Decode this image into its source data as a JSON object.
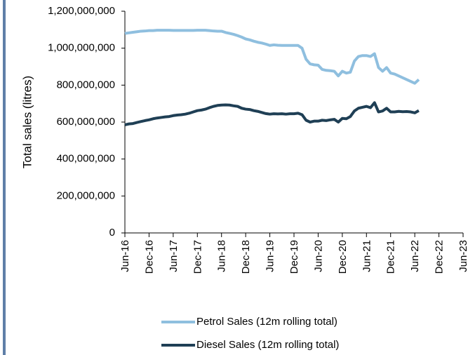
{
  "chart_data": {
    "type": "line",
    "ylabel": "Total sales (litres)",
    "categories": [
      "Jun-16",
      null,
      null,
      null,
      null,
      null,
      "Dec-16",
      null,
      null,
      null,
      null,
      null,
      "Jun-17",
      null,
      null,
      null,
      null,
      null,
      "Dec-17",
      null,
      null,
      null,
      null,
      null,
      "Jun-18",
      null,
      null,
      null,
      null,
      null,
      "Dec-18",
      null,
      null,
      null,
      null,
      null,
      "Jun-19",
      null,
      null,
      null,
      null,
      null,
      "Dec-19",
      null,
      null,
      null,
      null,
      null,
      "Jun-20",
      null,
      null,
      null,
      null,
      null,
      "Dec-20",
      null,
      null,
      null,
      null,
      null,
      "Jun-21",
      null,
      null,
      null,
      null,
      null,
      "Dec-21",
      null,
      null,
      null,
      null,
      null,
      "Jun-22",
      null,
      null,
      null,
      null,
      null,
      "Dec-22",
      null,
      null,
      null,
      null,
      null,
      "Jun-23"
    ],
    "series": [
      {
        "name": "Petrol Sales (12m rolling total)",
        "color": "#8fbfdf",
        "values": [
          1080000000,
          1083000000,
          1086000000,
          1089000000,
          1092000000,
          1093000000,
          1095000000,
          1095000000,
          1097000000,
          1097000000,
          1097000000,
          1097000000,
          1096000000,
          1096000000,
          1096000000,
          1096000000,
          1096000000,
          1096000000,
          1097000000,
          1097000000,
          1097000000,
          1095000000,
          1093000000,
          1092000000,
          1092000000,
          1085000000,
          1080000000,
          1075000000,
          1068000000,
          1060000000,
          1050000000,
          1045000000,
          1038000000,
          1032000000,
          1028000000,
          1022000000,
          1015000000,
          1018000000,
          1016000000,
          1015000000,
          1015000000,
          1015000000,
          1015000000,
          1015000000,
          1000000000,
          940000000,
          915000000,
          910000000,
          908000000,
          885000000,
          880000000,
          878000000,
          875000000,
          850000000,
          875000000,
          865000000,
          870000000,
          930000000,
          955000000,
          960000000,
          960000000,
          955000000,
          970000000,
          895000000,
          875000000,
          895000000,
          865000000,
          860000000,
          850000000,
          840000000,
          830000000,
          820000000,
          810000000,
          830000000,
          null,
          null,
          null,
          null,
          null,
          null,
          null,
          null,
          null,
          null,
          null
        ]
      },
      {
        "name": "Diesel Sales (12m rolling total)",
        "color": "#1f3f55",
        "values": [
          585000000,
          590000000,
          592000000,
          598000000,
          603000000,
          608000000,
          612000000,
          618000000,
          622000000,
          625000000,
          628000000,
          630000000,
          635000000,
          638000000,
          640000000,
          643000000,
          648000000,
          655000000,
          662000000,
          665000000,
          670000000,
          678000000,
          685000000,
          690000000,
          692000000,
          693000000,
          692000000,
          688000000,
          685000000,
          675000000,
          670000000,
          668000000,
          662000000,
          658000000,
          652000000,
          646000000,
          643000000,
          645000000,
          644000000,
          645000000,
          643000000,
          645000000,
          645000000,
          648000000,
          640000000,
          610000000,
          600000000,
          605000000,
          605000000,
          610000000,
          608000000,
          612000000,
          615000000,
          600000000,
          620000000,
          618000000,
          630000000,
          660000000,
          675000000,
          680000000,
          685000000,
          678000000,
          705000000,
          655000000,
          660000000,
          675000000,
          655000000,
          655000000,
          658000000,
          656000000,
          657000000,
          655000000,
          650000000,
          662000000,
          null,
          null,
          null,
          null,
          null,
          null,
          null,
          null,
          null,
          null,
          null
        ]
      }
    ],
    "ylim": [
      0,
      1200000000
    ],
    "yticks": [
      0,
      {
        "value": 200000000,
        "label": "200,000,000"
      },
      {
        "value": 400000000,
        "label": "400,000,000"
      },
      {
        "value": 600000000,
        "label": "600,000,000"
      },
      {
        "value": 800000000,
        "label": "800,000,000"
      },
      {
        "value": 1000000000,
        "label": "1,000,000,000"
      },
      {
        "value": 1200000000,
        "label": "1,200,000,000"
      }
    ],
    "grid": false
  }
}
